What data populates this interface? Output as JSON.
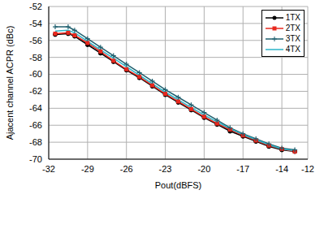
{
  "chart_data": {
    "type": "line",
    "x_label": "Pout(dBFS)",
    "y_label": "Ajacent channel ACPR (dBc)",
    "x": [
      -31.5,
      -30.5,
      -30,
      -29,
      -28,
      -27,
      -26,
      -25,
      -24,
      -23,
      -22,
      -21,
      -20,
      -19,
      -18,
      -17,
      -16,
      -15,
      -14,
      -13
    ],
    "series": [
      {
        "name": "1TX",
        "color": "#000000",
        "marker": "circle",
        "values": [
          -55.3,
          -55.2,
          -55.5,
          -56.5,
          -57.5,
          -58.5,
          -59.5,
          -60.4,
          -61.4,
          -62.4,
          -63.3,
          -64.2,
          -65.1,
          -65.9,
          -66.7,
          -67.3,
          -67.9,
          -68.5,
          -68.9,
          -69.1
        ]
      },
      {
        "name": "2TX",
        "color": "#e8281e",
        "marker": "square",
        "values": [
          -55.2,
          -55.1,
          -55.4,
          -56.3,
          -57.3,
          -58.4,
          -59.4,
          -60.3,
          -61.3,
          -62.3,
          -63.2,
          -64.1,
          -65.0,
          -65.8,
          -66.5,
          -67.2,
          -67.8,
          -68.4,
          -68.8,
          -69.1
        ]
      },
      {
        "name": "3TX",
        "color": "#1f5f6e",
        "marker": "plus",
        "values": [
          -54.4,
          -54.4,
          -54.8,
          -55.8,
          -56.8,
          -57.8,
          -58.8,
          -59.8,
          -60.8,
          -61.8,
          -62.7,
          -63.6,
          -64.5,
          -65.4,
          -66.3,
          -67.0,
          -67.6,
          -68.2,
          -68.7,
          -68.9
        ]
      },
      {
        "name": "4TX",
        "color": "#2bb5c8",
        "marker": "none",
        "values": [
          -54.9,
          -54.8,
          -55.1,
          -56.1,
          -57.1,
          -58.1,
          -59.1,
          -60.1,
          -61.1,
          -62.1,
          -63.0,
          -63.9,
          -64.8,
          -65.6,
          -66.4,
          -67.1,
          -67.7,
          -68.3,
          -68.8,
          -69.0
        ]
      }
    ],
    "xlim": [
      -32,
      -12
    ],
    "xticks": [
      -32,
      -29,
      -26,
      -23,
      -20,
      -17,
      -14,
      -12
    ],
    "ylim": [
      -70,
      -52
    ],
    "yticks": [
      -70,
      -68,
      -66,
      -64,
      -62,
      -60,
      -58,
      -56,
      -54,
      -52
    ],
    "grid": true,
    "legend": "upper right"
  }
}
